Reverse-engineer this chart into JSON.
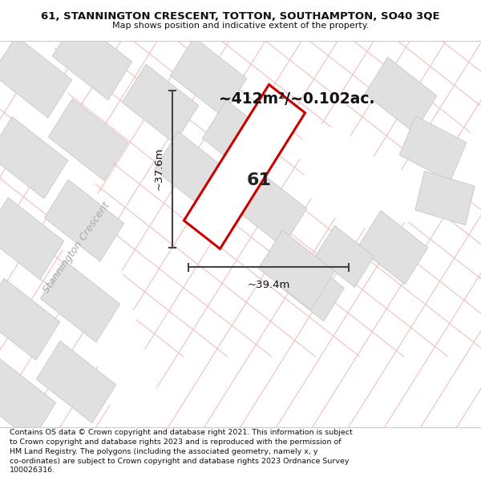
{
  "title_line1": "61, STANNINGTON CRESCENT, TOTTON, SOUTHAMPTON, SO40 3QE",
  "title_line2": "Map shows position and indicative extent of the property.",
  "area_text": "~412m²/~0.102ac.",
  "label_61": "61",
  "dim_width": "~39.4m",
  "dim_height": "~37.6m",
  "street_label": "Stannington Crescent",
  "footer_text": "Contains OS data © Crown copyright and database right 2021. This information is subject to Crown copyright and database rights 2023 and is reproduced with the permission of HM Land Registry. The polygons (including the associated geometry, namely x, y co-ordinates) are subject to Crown copyright and database rights 2023 Ordnance Survey 100026316.",
  "map_bg": "#f5f5f5",
  "plot_fill": "#ffffff",
  "plot_edge_color": "#cc0000",
  "building_fill": "#e0e0e0",
  "building_edge": "#c8c8c8",
  "road_line_color": "#f0c0c0",
  "dim_line_color": "#444444",
  "title_bg": "#ffffff",
  "footer_bg": "#ffffff",
  "street_text_color": "#aaaaaa"
}
